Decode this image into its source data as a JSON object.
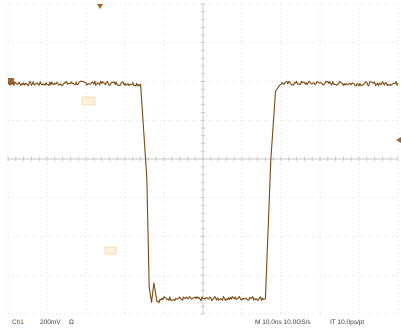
{
  "chart_data": {
    "type": "line",
    "x_unit": "ns",
    "y_unit": "mV",
    "xlim": [
      0,
      100
    ],
    "ylim": [
      -800,
      800
    ],
    "grid": true,
    "series": [
      {
        "color": "#7a4a12",
        "points": [
          [
            0,
            390
          ],
          [
            10,
            388
          ],
          [
            20,
            392
          ],
          [
            30,
            390
          ],
          [
            34,
            386
          ],
          [
            35.6,
            -100
          ],
          [
            36.2,
            -660
          ],
          [
            36.8,
            -740
          ],
          [
            37.4,
            -640
          ],
          [
            38.2,
            -735
          ],
          [
            40,
            -720
          ],
          [
            50,
            -722
          ],
          [
            60,
            -718
          ],
          [
            66,
            -720
          ],
          [
            67.4,
            0
          ],
          [
            68.6,
            350
          ],
          [
            70,
            390
          ],
          [
            80,
            392
          ],
          [
            90,
            388
          ],
          [
            100,
            390
          ]
        ]
      }
    ]
  },
  "status_bar": {
    "channel": "Ch1",
    "scale": "200mV",
    "coupling": "Ω",
    "timebase": "M 10.0ns 10.0GS/s",
    "record": "IT 10.0ps/pt"
  },
  "marker_colors": {
    "trigger": "#a0642a"
  }
}
